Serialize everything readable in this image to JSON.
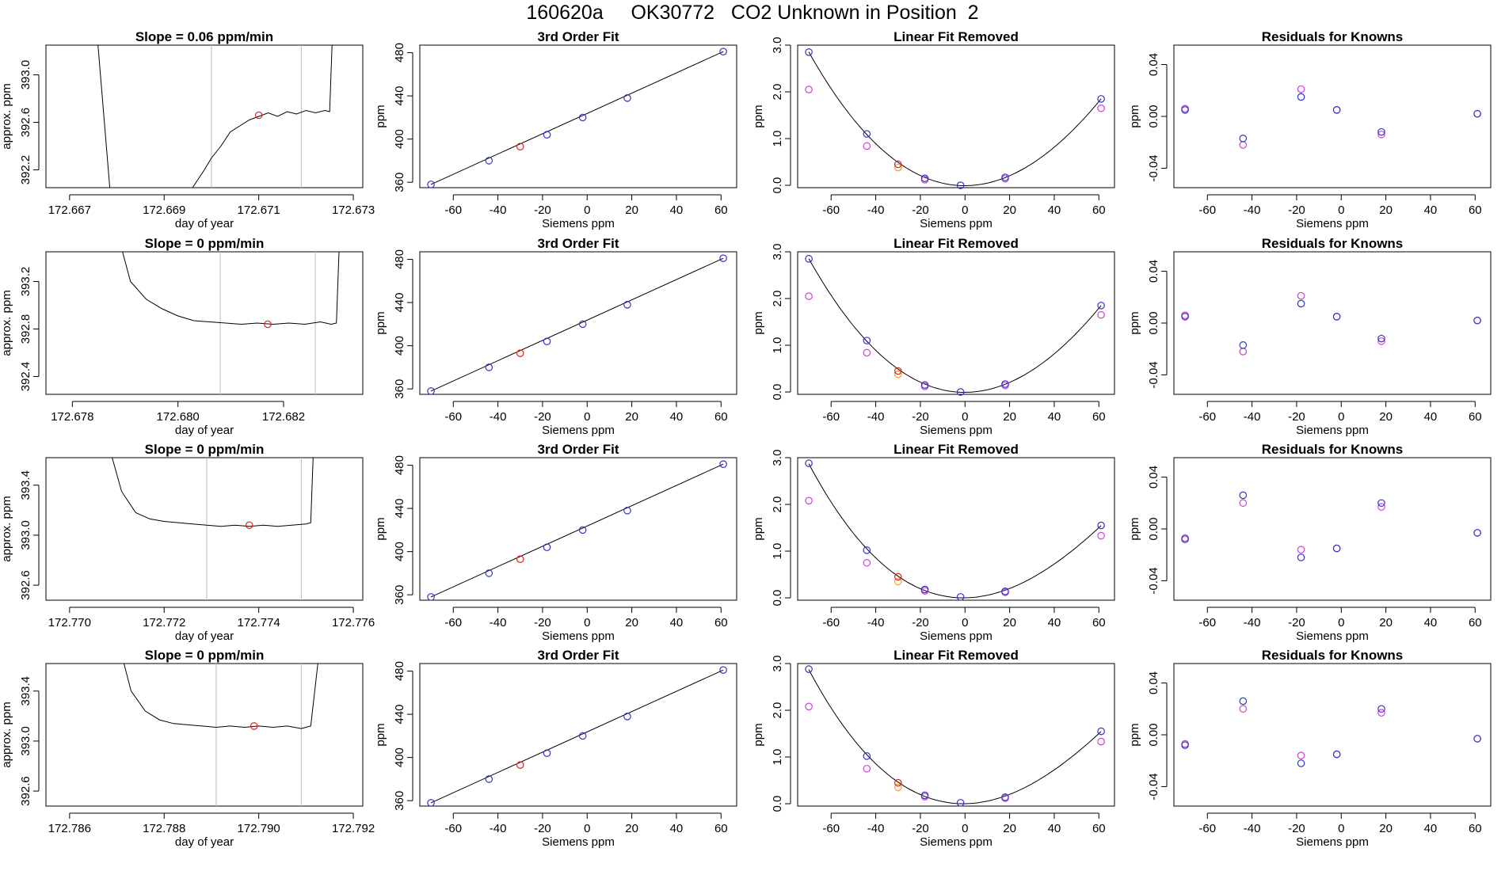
{
  "page": {
    "title": "160620a     OK30772   CO2 Unknown in Position  2"
  },
  "colors": {
    "line": "#000000",
    "blue": "#3333cc",
    "violet": "#cc44cc",
    "orange": "#ff9922",
    "red": "#dd2222",
    "gray": "#bbbbbb"
  },
  "common": {
    "siemens_x": [
      -70,
      -44,
      -30,
      -18,
      -2,
      18,
      61
    ],
    "x_ticks": [
      -60,
      -40,
      -20,
      0,
      20,
      40,
      60
    ],
    "x_range": [
      -75,
      67
    ],
    "fit_title": "3rd Order Fit",
    "fit_xlabel": "Siemens ppm",
    "fit_ylabel": "ppm",
    "fit_yticks": [
      360,
      400,
      440,
      480
    ],
    "fit_ylim": [
      355,
      487
    ],
    "fit_y": [
      358,
      380,
      393,
      404,
      420,
      438,
      481
    ],
    "lin_title": "Linear Fit Removed",
    "lin_xlabel": "Siemens ppm",
    "lin_ylabel": "ppm",
    "lin_yticks": [
      "0.0",
      "1.0",
      "2.0",
      "3.0"
    ],
    "lin_ylim": [
      -0.05,
      3.0
    ],
    "res_title": "Residuals for Knowns",
    "res_xlabel": "Siemens ppm",
    "res_ylabel": "ppm",
    "res_yticks": [
      "-0.04",
      "0.00",
      "0.04"
    ],
    "res_ylim": [
      -0.055,
      0.055
    ],
    "ts_xlabel": "day of year",
    "ts_ylabel": "approx. ppm"
  },
  "rows": [
    {
      "slope_title": "Slope =  0.06  ppm/min",
      "ts": {
        "xlim": [
          172.6665,
          172.6732
        ],
        "ylim": [
          392.05,
          393.25
        ],
        "xticks": [
          "172.667",
          "172.669",
          "172.671",
          "172.673"
        ],
        "yticks": [
          "392.2",
          "392.6",
          "393.0"
        ],
        "vlines": [
          172.67,
          172.6719
        ],
        "marker": [
          172.671,
          392.66
        ],
        "trace": [
          [
            172.6676,
            393.25
          ],
          [
            172.66785,
            392.05
          ],
          [
            172.6696,
            392.05
          ],
          [
            172.66985,
            392.2
          ],
          [
            172.67,
            392.3
          ],
          [
            172.6702,
            392.4
          ],
          [
            172.6704,
            392.52
          ],
          [
            172.6706,
            392.57
          ],
          [
            172.6708,
            392.62
          ],
          [
            172.671,
            392.65
          ],
          [
            172.6712,
            392.68
          ],
          [
            172.6714,
            392.65
          ],
          [
            172.6716,
            392.69
          ],
          [
            172.6718,
            392.67
          ],
          [
            172.672,
            392.7
          ],
          [
            172.6722,
            392.68
          ],
          [
            172.6724,
            392.7
          ],
          [
            172.6725,
            392.69
          ],
          [
            172.67255,
            393.25
          ]
        ]
      },
      "lin_blue": [
        2.85,
        1.1,
        0.45,
        0.15,
        0.0,
        0.17,
        1.85
      ],
      "lin_violet": [
        2.05,
        0.84,
        null,
        0.12,
        null,
        0.14,
        1.65
      ],
      "lin_orange": 0.38,
      "curve_a": [
        -5e-05,
        0.00063,
        0.00202
      ],
      "res_blue": [
        0.005,
        -0.017,
        null,
        0.015,
        0.005,
        -0.012,
        0.002
      ],
      "res_violet": [
        0.006,
        -0.022,
        null,
        0.021,
        0.005,
        -0.014,
        0.002
      ]
    },
    {
      "slope_title": "Slope =  0  ppm/min",
      "ts": {
        "xlim": [
          172.6775,
          172.6835
        ],
        "ylim": [
          392.25,
          393.45
        ],
        "xticks": [
          "172.678",
          "172.680",
          "172.682"
        ],
        "yticks": [
          "392.4",
          "392.8",
          "393.2"
        ],
        "vlines": [
          172.6808,
          172.6826
        ],
        "marker": [
          172.6817,
          392.84
        ],
        "trace": [
          [
            172.67895,
            393.45
          ],
          [
            172.6791,
            393.2
          ],
          [
            172.6794,
            393.05
          ],
          [
            172.6797,
            392.97
          ],
          [
            172.68,
            392.91
          ],
          [
            172.6803,
            392.87
          ],
          [
            172.6806,
            392.86
          ],
          [
            172.6809,
            392.85
          ],
          [
            172.6812,
            392.84
          ],
          [
            172.6815,
            392.85
          ],
          [
            172.6818,
            392.84
          ],
          [
            172.6821,
            392.85
          ],
          [
            172.6824,
            392.84
          ],
          [
            172.6827,
            392.86
          ],
          [
            172.6829,
            392.84
          ],
          [
            172.683,
            392.85
          ],
          [
            172.68305,
            393.45
          ]
        ]
      },
      "lin_blue": [
        2.85,
        1.1,
        0.45,
        0.15,
        0.0,
        0.17,
        1.85
      ],
      "lin_violet": [
        2.05,
        0.84,
        null,
        0.12,
        null,
        0.14,
        1.65
      ],
      "lin_orange": 0.38,
      "curve_a": [
        -5e-05,
        0.00063,
        0.00202
      ],
      "res_blue": [
        0.005,
        -0.017,
        null,
        0.015,
        0.005,
        -0.012,
        0.002
      ],
      "res_violet": [
        0.006,
        -0.022,
        null,
        0.021,
        0.005,
        -0.014,
        0.002
      ]
    },
    {
      "slope_title": "Slope =  0  ppm/min",
      "ts": {
        "xlim": [
          172.7695,
          172.7762
        ],
        "ylim": [
          392.48,
          393.62
        ],
        "xticks": [
          "172.770",
          "172.772",
          "172.774",
          "172.776"
        ],
        "yticks": [
          "392.6",
          "393.0",
          "393.4"
        ],
        "vlines": [
          172.7729,
          172.7749
        ],
        "marker": [
          172.7738,
          393.08
        ],
        "trace": [
          [
            172.7709,
            393.62
          ],
          [
            172.7711,
            393.35
          ],
          [
            172.7714,
            393.18
          ],
          [
            172.7717,
            393.13
          ],
          [
            172.772,
            393.11
          ],
          [
            172.7723,
            393.1
          ],
          [
            172.7726,
            393.09
          ],
          [
            172.7729,
            393.08
          ],
          [
            172.7732,
            393.07
          ],
          [
            172.7735,
            393.08
          ],
          [
            172.7738,
            393.07
          ],
          [
            172.7741,
            393.08
          ],
          [
            172.7744,
            393.07
          ],
          [
            172.7747,
            393.08
          ],
          [
            172.775,
            393.09
          ],
          [
            172.7751,
            393.1
          ],
          [
            172.77515,
            393.62
          ]
        ]
      },
      "lin_blue": [
        2.88,
        1.02,
        0.45,
        0.18,
        0.02,
        0.14,
        1.55
      ],
      "lin_violet": [
        2.08,
        0.75,
        null,
        0.15,
        null,
        0.12,
        1.33
      ],
      "lin_orange": 0.35,
      "curve_a": [
        -5e-05,
        0.00055,
        0.00195
      ],
      "res_blue": [
        -0.008,
        0.026,
        null,
        -0.022,
        -0.015,
        0.02,
        -0.003
      ],
      "res_violet": [
        -0.007,
        0.02,
        null,
        -0.016,
        -0.015,
        0.017,
        -0.003
      ]
    },
    {
      "slope_title": "Slope =  0  ppm/min",
      "ts": {
        "xlim": [
          172.7855,
          172.7922
        ],
        "ylim": [
          392.48,
          393.62
        ],
        "xticks": [
          "172.786",
          "172.788",
          "172.790",
          "172.792"
        ],
        "yticks": [
          "392.6",
          "393.0",
          "393.4"
        ],
        "vlines": [
          172.7891,
          172.7909
        ],
        "marker": [
          172.7899,
          393.12
        ],
        "trace": [
          [
            172.78715,
            393.62
          ],
          [
            172.7873,
            393.4
          ],
          [
            172.7876,
            393.24
          ],
          [
            172.7879,
            393.17
          ],
          [
            172.7882,
            393.14
          ],
          [
            172.7885,
            393.13
          ],
          [
            172.7888,
            393.12
          ],
          [
            172.7891,
            393.11
          ],
          [
            172.7894,
            393.12
          ],
          [
            172.7897,
            393.11
          ],
          [
            172.79,
            393.12
          ],
          [
            172.7903,
            393.11
          ],
          [
            172.7906,
            393.12
          ],
          [
            172.7909,
            393.1
          ],
          [
            172.7911,
            393.12
          ],
          [
            172.79125,
            393.62
          ]
        ]
      },
      "lin_blue": [
        2.88,
        1.02,
        0.45,
        0.18,
        0.02,
        0.14,
        1.55
      ],
      "lin_violet": [
        2.08,
        0.75,
        null,
        0.15,
        null,
        0.12,
        1.33
      ],
      "lin_orange": 0.35,
      "curve_a": [
        -5e-05,
        0.00055,
        0.00195
      ],
      "res_blue": [
        -0.008,
        0.026,
        null,
        -0.022,
        -0.015,
        0.02,
        -0.003
      ],
      "res_violet": [
        -0.007,
        0.02,
        null,
        -0.016,
        -0.015,
        0.017,
        -0.003
      ]
    }
  ],
  "chart_data": {
    "type": "scatter",
    "title": "160620a     OK30772   CO2 Unknown in Position  2",
    "description_panels": [
      "time series (day of year vs approx. ppm)",
      "3rd Order Fit",
      "Linear Fit Removed",
      "Residuals for Knowns"
    ],
    "x": [
      -70,
      -44,
      -30,
      -18,
      -2,
      18,
      61
    ],
    "xlabel": "Siemens ppm"
  }
}
